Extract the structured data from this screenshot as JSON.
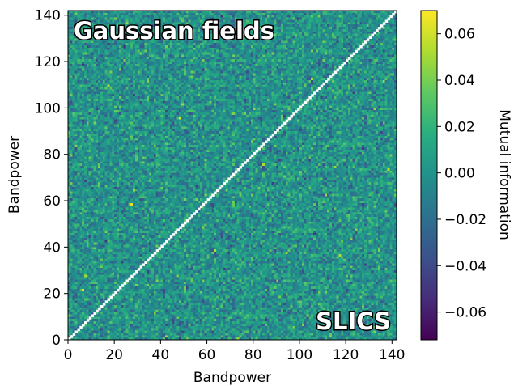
{
  "chart_data": {
    "type": "heatmap",
    "xlabel": "Bandpower",
    "ylabel": "Bandpower",
    "xlim": [
      0,
      142
    ],
    "ylim": [
      0,
      142
    ],
    "x_ticks": [
      "0",
      "20",
      "40",
      "60",
      "80",
      "100",
      "120",
      "140"
    ],
    "y_ticks": [
      "0",
      "20",
      "40",
      "60",
      "80",
      "100",
      "120",
      "140"
    ],
    "n_bins": 142,
    "diagonal": "masked (white)",
    "annotations": {
      "upper_left": "Gaussian fields",
      "lower_right": "SLICS"
    },
    "value_summary": {
      "mean": 0.0,
      "typical_spread": 0.015,
      "note": "noise-like field; diagonal excluded"
    },
    "colorbar": {
      "label": "Mutual information",
      "colormap": "viridis",
      "range": [
        -0.072,
        0.07
      ],
      "ticks": [
        "0.06",
        "0.04",
        "0.02",
        "0.00",
        "−0.02",
        "−0.04",
        "−0.06"
      ]
    }
  }
}
